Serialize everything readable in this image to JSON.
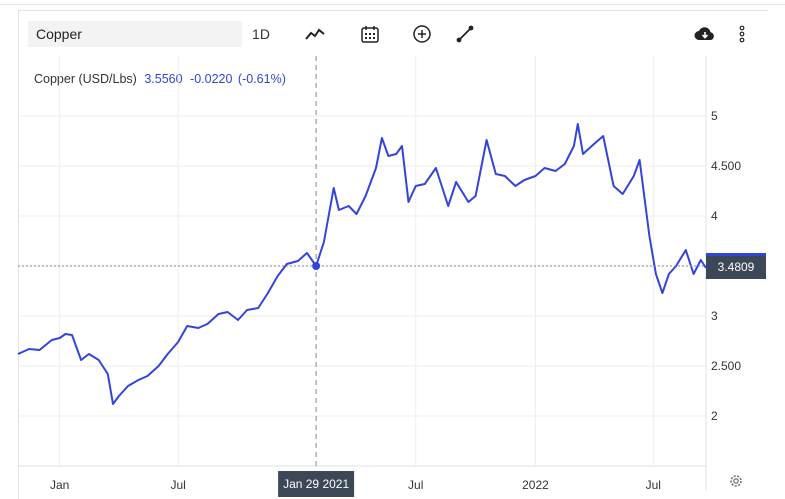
{
  "toolbar": {
    "symbol_value": "Copper",
    "interval_label": "1D",
    "icons": [
      "line-chart-icon",
      "calendar-icon",
      "add-circle-icon",
      "draw-line-icon",
      "cloud-download-icon",
      "more-vertical-icon",
      "settings-icon"
    ]
  },
  "legend": {
    "name": "Copper (USD/Lbs)",
    "price": "3.5560",
    "change": "-0.0220",
    "change_pct": "(-0.61%)"
  },
  "crosshair": {
    "date_label": "Jan 29 2021",
    "price_label": "3.4809"
  },
  "colors": {
    "line": "#3344dd",
    "price_tag": "#3c4858",
    "crosshair": "#888888"
  },
  "chart_data": {
    "type": "line",
    "title": "",
    "xlabel": "",
    "ylabel": "",
    "ylim": [
      1.5,
      5.6
    ],
    "y_ticks": [
      2,
      2.5,
      3,
      3.5,
      4,
      4.5,
      5
    ],
    "y_tick_labels": [
      "2",
      "2.500",
      "3",
      "",
      "4",
      "4.500",
      "5"
    ],
    "x_ticks": [
      {
        "date": "2020-01-01",
        "label": "Jan"
      },
      {
        "date": "2020-07-01",
        "label": "Jul"
      },
      {
        "date": "2021-07-01",
        "label": "Jul"
      },
      {
        "date": "2022-01-01",
        "label": "2022"
      },
      {
        "date": "2022-07-01",
        "label": "Jul"
      }
    ],
    "x_range": [
      "2019-10-29",
      "2022-09-20"
    ],
    "series": [
      {
        "name": "Copper (USD/Lbs)",
        "points": [
          [
            "2019-10-29",
            2.62
          ],
          [
            "2019-11-15",
            2.67
          ],
          [
            "2019-12-01",
            2.66
          ],
          [
            "2019-12-20",
            2.76
          ],
          [
            "2020-01-01",
            2.78
          ],
          [
            "2020-01-10",
            2.82
          ],
          [
            "2020-01-20",
            2.81
          ],
          [
            "2020-02-03",
            2.56
          ],
          [
            "2020-02-15",
            2.62
          ],
          [
            "2020-03-01",
            2.56
          ],
          [
            "2020-03-15",
            2.42
          ],
          [
            "2020-03-23",
            2.12
          ],
          [
            "2020-04-01",
            2.2
          ],
          [
            "2020-04-15",
            2.3
          ],
          [
            "2020-05-01",
            2.36
          ],
          [
            "2020-05-15",
            2.4
          ],
          [
            "2020-06-01",
            2.5
          ],
          [
            "2020-06-15",
            2.62
          ],
          [
            "2020-07-01",
            2.74
          ],
          [
            "2020-07-15",
            2.9
          ],
          [
            "2020-08-01",
            2.88
          ],
          [
            "2020-08-15",
            2.92
          ],
          [
            "2020-09-01",
            3.02
          ],
          [
            "2020-09-15",
            3.04
          ],
          [
            "2020-10-01",
            2.96
          ],
          [
            "2020-10-15",
            3.06
          ],
          [
            "2020-11-01",
            3.08
          ],
          [
            "2020-11-15",
            3.22
          ],
          [
            "2020-12-01",
            3.4
          ],
          [
            "2020-12-15",
            3.52
          ],
          [
            "2021-01-01",
            3.55
          ],
          [
            "2021-01-15",
            3.63
          ],
          [
            "2021-01-29",
            3.5
          ],
          [
            "2021-02-10",
            3.74
          ],
          [
            "2021-02-25",
            4.28
          ],
          [
            "2021-03-05",
            4.06
          ],
          [
            "2021-03-20",
            4.1
          ],
          [
            "2021-04-01",
            4.02
          ],
          [
            "2021-04-15",
            4.2
          ],
          [
            "2021-05-01",
            4.48
          ],
          [
            "2021-05-10",
            4.78
          ],
          [
            "2021-05-20",
            4.6
          ],
          [
            "2021-06-01",
            4.62
          ],
          [
            "2021-06-10",
            4.7
          ],
          [
            "2021-06-20",
            4.14
          ],
          [
            "2021-07-01",
            4.3
          ],
          [
            "2021-07-15",
            4.32
          ],
          [
            "2021-08-01",
            4.48
          ],
          [
            "2021-08-20",
            4.1
          ],
          [
            "2021-09-01",
            4.34
          ],
          [
            "2021-09-20",
            4.14
          ],
          [
            "2021-10-01",
            4.2
          ],
          [
            "2021-10-18",
            4.76
          ],
          [
            "2021-11-01",
            4.42
          ],
          [
            "2021-11-15",
            4.4
          ],
          [
            "2021-12-01",
            4.3
          ],
          [
            "2021-12-15",
            4.36
          ],
          [
            "2022-01-01",
            4.4
          ],
          [
            "2022-01-15",
            4.48
          ],
          [
            "2022-02-01",
            4.45
          ],
          [
            "2022-02-15",
            4.52
          ],
          [
            "2022-03-01",
            4.7
          ],
          [
            "2022-03-07",
            4.92
          ],
          [
            "2022-03-15",
            4.62
          ],
          [
            "2022-04-01",
            4.72
          ],
          [
            "2022-04-15",
            4.8
          ],
          [
            "2022-05-01",
            4.3
          ],
          [
            "2022-05-15",
            4.22
          ],
          [
            "2022-06-01",
            4.4
          ],
          [
            "2022-06-10",
            4.56
          ],
          [
            "2022-06-25",
            3.8
          ],
          [
            "2022-07-05",
            3.42
          ],
          [
            "2022-07-15",
            3.23
          ],
          [
            "2022-07-25",
            3.42
          ],
          [
            "2022-08-05",
            3.5
          ],
          [
            "2022-08-20",
            3.66
          ],
          [
            "2022-09-01",
            3.42
          ],
          [
            "2022-09-12",
            3.56
          ],
          [
            "2022-09-20",
            3.48
          ]
        ]
      }
    ],
    "crosshair_point": [
      "2021-01-29",
      3.5
    ],
    "grid": true,
    "legend_position": "top-left"
  }
}
